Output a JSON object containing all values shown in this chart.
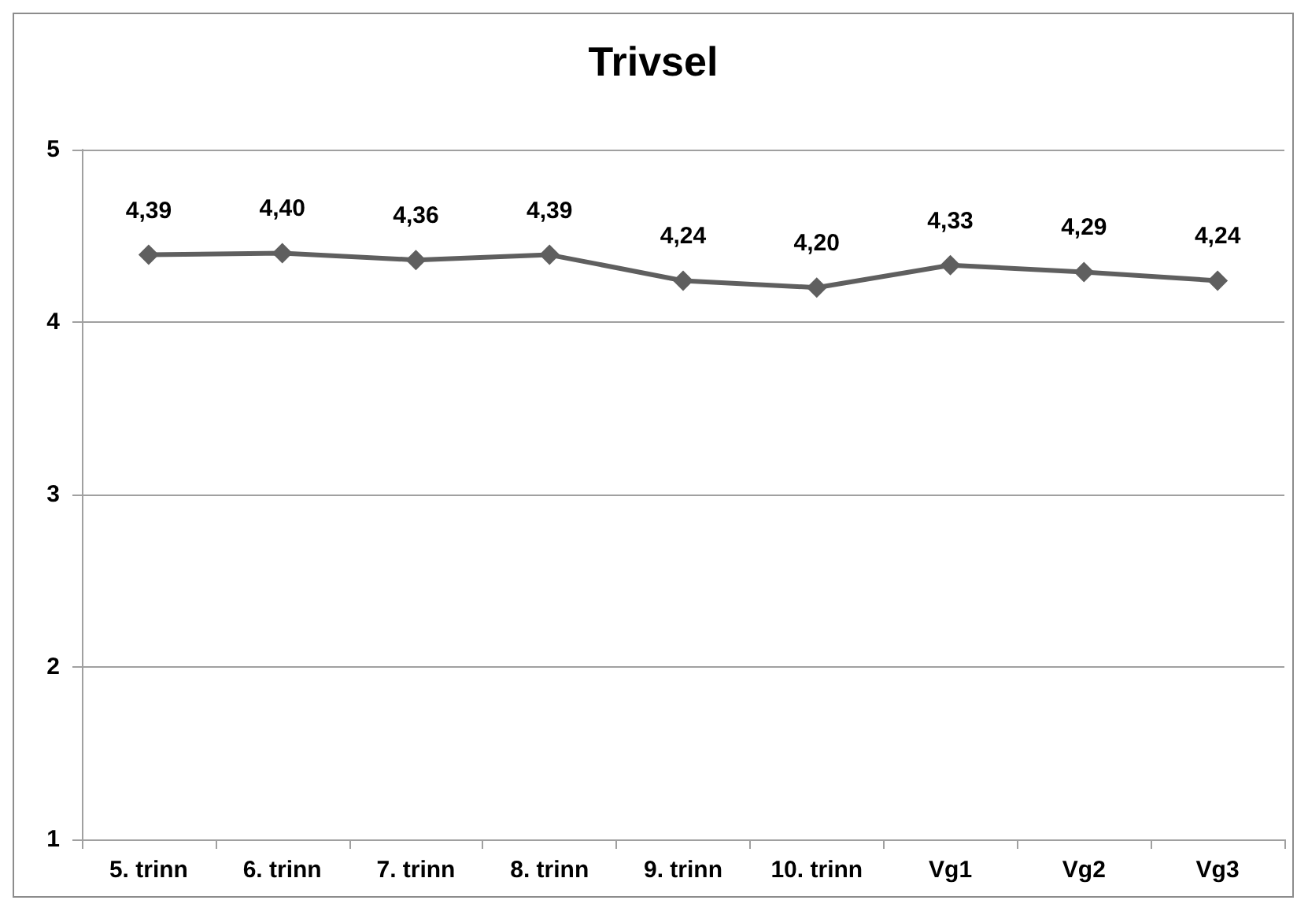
{
  "chart_data": {
    "type": "line",
    "title": "Trivsel",
    "categories": [
      "5. trinn",
      "6. trinn",
      "7. trinn",
      "8. trinn",
      "9. trinn",
      "10. trinn",
      "Vg1",
      "Vg2",
      "Vg3"
    ],
    "values": [
      4.39,
      4.4,
      4.36,
      4.39,
      4.24,
      4.2,
      4.33,
      4.29,
      4.24
    ],
    "value_labels": [
      "4,39",
      "4,40",
      "4,36",
      "4,39",
      "4,24",
      "4,20",
      "4,33",
      "4,29",
      "4,24"
    ],
    "color": "#5f5f5f",
    "ylim": [
      1,
      5
    ],
    "yticks": [
      1,
      2,
      3,
      4,
      5
    ],
    "grid": "y",
    "marker": "diamond",
    "line_style": "solid"
  }
}
